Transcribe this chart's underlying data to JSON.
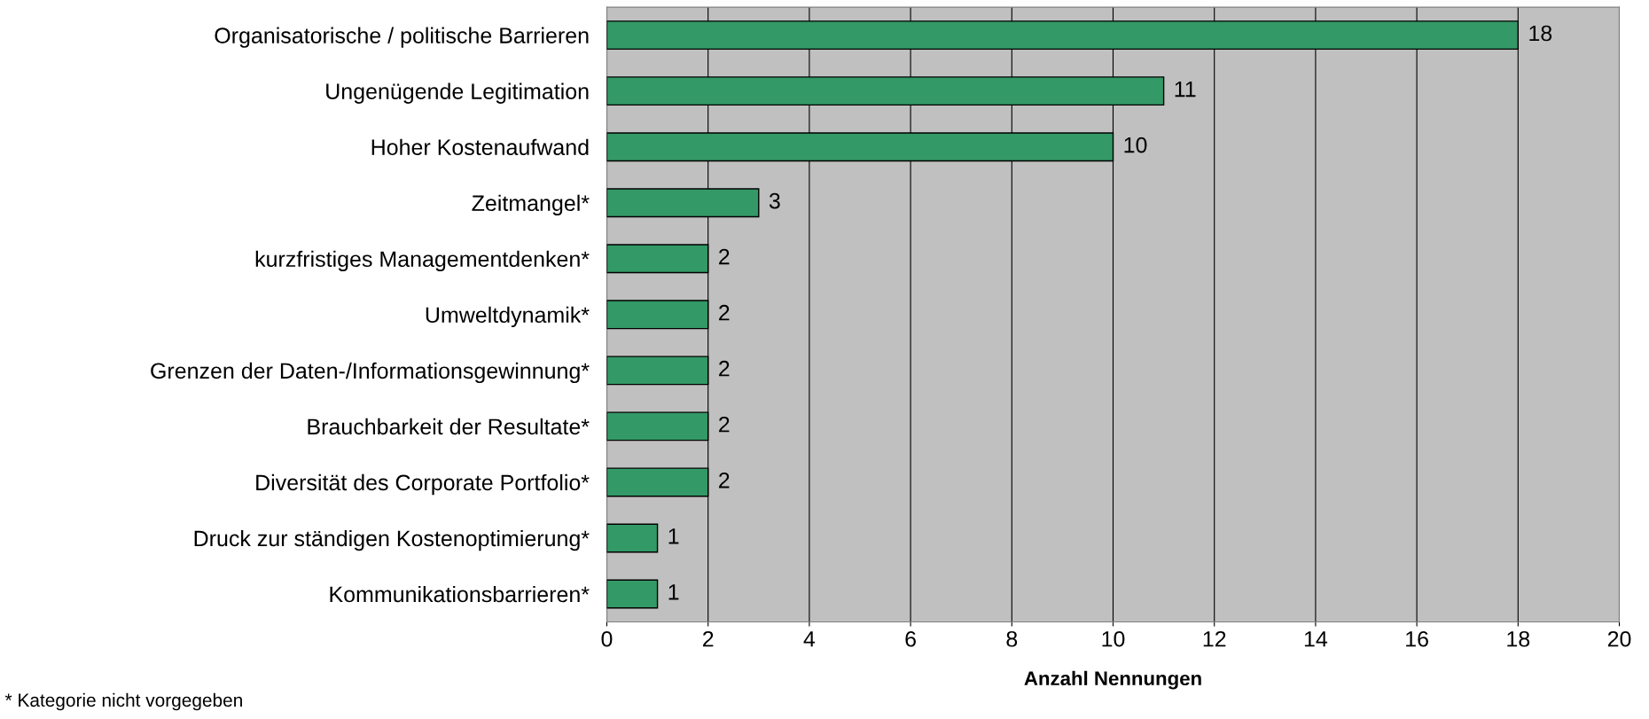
{
  "chart_data": {
    "type": "bar",
    "orientation": "horizontal",
    "categories": [
      "Organisatorische / politische Barrieren",
      "Ungenügende Legitimation",
      "Hoher Kostenaufwand",
      "Zeitmangel*",
      "kurzfristiges Managementdenken*",
      "Umweltdynamik*",
      "Grenzen der Daten-/Informationsgewinnung*",
      "Brauchbarkeit der Resultate*",
      "Diversität des Corporate Portfolio*",
      "Druck zur ständigen Kostenoptimierung*",
      "Kommunikationsbarrieren*"
    ],
    "values": [
      18,
      11,
      10,
      3,
      2,
      2,
      2,
      2,
      2,
      1,
      1
    ],
    "color": "#339966",
    "xlim": [
      0,
      20
    ],
    "xticks": [
      0,
      2,
      4,
      6,
      8,
      10,
      12,
      14,
      16,
      18,
      20
    ],
    "xlabel": "Anzahl Nennungen",
    "data_labels": true,
    "grid": "x",
    "annotations": [
      "* Kategorie nicht vorgegeben"
    ]
  }
}
